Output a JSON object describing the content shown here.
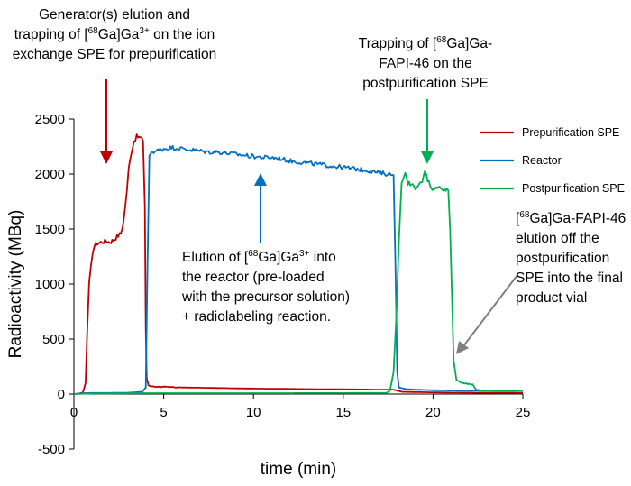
{
  "chart_data": {
    "type": "line",
    "xlabel": "time (min)",
    "ylabel": "Radioactivity (MBq)",
    "xlim": [
      0,
      25
    ],
    "ylim": [
      -500,
      2500
    ],
    "xticks": [
      0,
      5,
      10,
      15,
      20,
      25
    ],
    "yticks": [
      -500,
      0,
      500,
      1000,
      1500,
      2000,
      2500
    ],
    "grid": false,
    "legend_position": "right",
    "series": [
      {
        "name": "Prepurification SPE",
        "color": "#C00000",
        "points": [
          [
            0,
            0
          ],
          [
            0.3,
            5
          ],
          [
            0.5,
            15
          ],
          [
            0.65,
            100
          ],
          [
            0.75,
            600
          ],
          [
            0.85,
            1000
          ],
          [
            0.95,
            1150
          ],
          [
            1.05,
            1300
          ],
          [
            1.15,
            1350
          ],
          [
            1.3,
            1370
          ],
          [
            1.5,
            1380
          ],
          [
            1.8,
            1390
          ],
          [
            2.0,
            1380
          ],
          [
            2.2,
            1400
          ],
          [
            2.4,
            1430
          ],
          [
            2.6,
            1460
          ],
          [
            2.75,
            1550
          ],
          [
            2.85,
            1700
          ],
          [
            2.95,
            1850
          ],
          [
            3.05,
            2050
          ],
          [
            3.2,
            2200
          ],
          [
            3.35,
            2300
          ],
          [
            3.5,
            2340
          ],
          [
            3.7,
            2330
          ],
          [
            3.85,
            2300
          ],
          [
            3.95,
            1700
          ],
          [
            4.0,
            600
          ],
          [
            4.05,
            150
          ],
          [
            4.15,
            80
          ],
          [
            4.3,
            70
          ],
          [
            5,
            65
          ],
          [
            6,
            60
          ],
          [
            7,
            58
          ],
          [
            8,
            55
          ],
          [
            9,
            52
          ],
          [
            10,
            50
          ],
          [
            11,
            48
          ],
          [
            12,
            47
          ],
          [
            13,
            45
          ],
          [
            14,
            44
          ],
          [
            15,
            43
          ],
          [
            16,
            42
          ],
          [
            17,
            40
          ],
          [
            17.8,
            40
          ],
          [
            18.0,
            30
          ],
          [
            18.3,
            20
          ],
          [
            20,
            15
          ],
          [
            22,
            12
          ],
          [
            25,
            10
          ]
        ]
      },
      {
        "name": "Reactor",
        "color": "#0070C0",
        "points": [
          [
            0,
            0
          ],
          [
            0.6,
            8
          ],
          [
            1,
            10
          ],
          [
            2,
            10
          ],
          [
            3,
            12
          ],
          [
            3.8,
            20
          ],
          [
            4.0,
            60
          ],
          [
            4.1,
            1200
          ],
          [
            4.2,
            2150
          ],
          [
            4.3,
            2200
          ],
          [
            4.6,
            2210
          ],
          [
            5.0,
            2230
          ],
          [
            5.5,
            2240
          ],
          [
            6,
            2230
          ],
          [
            6.5,
            2220
          ],
          [
            7,
            2210
          ],
          [
            7.5,
            2200
          ],
          [
            8,
            2200
          ],
          [
            8.5,
            2190
          ],
          [
            9,
            2180
          ],
          [
            9.5,
            2170
          ],
          [
            10,
            2160
          ],
          [
            10.5,
            2150
          ],
          [
            11,
            2150
          ],
          [
            11.5,
            2140
          ],
          [
            12,
            2120
          ],
          [
            12.5,
            2110
          ],
          [
            13,
            2100
          ],
          [
            13.5,
            2090
          ],
          [
            14,
            2080
          ],
          [
            14.5,
            2070
          ],
          [
            15,
            2060
          ],
          [
            15.5,
            2050
          ],
          [
            16,
            2040
          ],
          [
            16.5,
            2030
          ],
          [
            17,
            2010
          ],
          [
            17.5,
            2000
          ],
          [
            17.8,
            1990
          ],
          [
            17.9,
            1200
          ],
          [
            18.0,
            200
          ],
          [
            18.1,
            60
          ],
          [
            18.5,
            45
          ],
          [
            19,
            40
          ],
          [
            20,
            35
          ],
          [
            21,
            32
          ],
          [
            22,
            30
          ],
          [
            25,
            28
          ]
        ]
      },
      {
        "name": "Postpurification SPE",
        "color": "#00B050",
        "points": [
          [
            0,
            0
          ],
          [
            1,
            5
          ],
          [
            4,
            8
          ],
          [
            10,
            8
          ],
          [
            17.4,
            10
          ],
          [
            17.6,
            30
          ],
          [
            17.8,
            200
          ],
          [
            17.95,
            700
          ],
          [
            18.1,
            1400
          ],
          [
            18.25,
            1900
          ],
          [
            18.35,
            1950
          ],
          [
            18.45,
            2000
          ],
          [
            18.6,
            1920
          ],
          [
            18.8,
            1900
          ],
          [
            19.0,
            1880
          ],
          [
            19.2,
            1900
          ],
          [
            19.4,
            1920
          ],
          [
            19.55,
            2030
          ],
          [
            19.7,
            1950
          ],
          [
            19.9,
            1880
          ],
          [
            20.1,
            1850
          ],
          [
            20.3,
            1900
          ],
          [
            20.5,
            1860
          ],
          [
            20.7,
            1850
          ],
          [
            20.85,
            1850
          ],
          [
            20.95,
            1500
          ],
          [
            21.05,
            900
          ],
          [
            21.15,
            300
          ],
          [
            21.3,
            130
          ],
          [
            21.6,
            100
          ],
          [
            22.0,
            90
          ],
          [
            22.2,
            85
          ],
          [
            22.4,
            40
          ],
          [
            22.8,
            30
          ],
          [
            25,
            28
          ]
        ]
      }
    ]
  },
  "annotations": {
    "a1_line1": "Generator(s) elution and",
    "a1_l2_pre": "trapping of [",
    "a1_l2_sup1": "68",
    "a1_l2_mid": "Ga]Ga",
    "a1_l2_sup2": "3+",
    "a1_l2_post": " on the ion",
    "a1_line3": "exchange SPE for prepurification",
    "a2_l1_pre": "Trapping of [",
    "a2_l1_sup": "68",
    "a2_l1_post": "Ga]Ga-",
    "a2_line2": "FAPI-46 on the",
    "a2_line3": "postpurification SPE",
    "a3_l1_pre": "Elution of [",
    "a3_l1_sup1": "68",
    "a3_l1_mid": "Ga]Ga",
    "a3_l1_sup2": "3+",
    "a3_l1_post": " into",
    "a3_line2": "the reactor (pre-loaded",
    "a3_line3": "with the precursor solution)",
    "a3_line4": "+  radiolabeling reaction.",
    "a4_l1_pre": "[",
    "a4_l1_sup": "68",
    "a4_l1_post": "Ga]Ga-FAPI-46",
    "a4_line2": "elution off the",
    "a4_line3": "postpurification",
    "a4_line4": "SPE into the final",
    "a4_line5": "product vial"
  }
}
